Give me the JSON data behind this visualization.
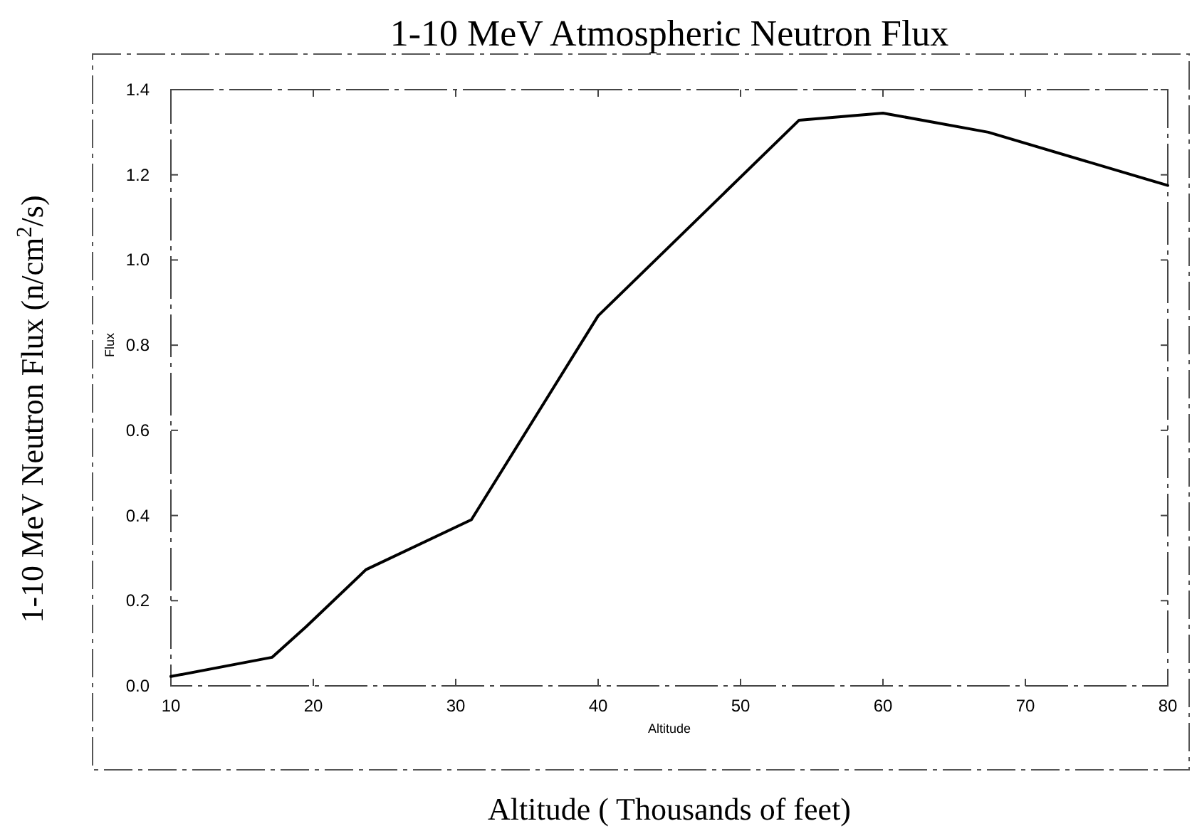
{
  "chart_data": {
    "type": "line",
    "title": "1-10 MeV Atmospheric Neutron Flux",
    "xlabel": "Altitude ( Thousands of feet)",
    "ylabel": "1-10 MeV Neutron Flux (n/cm$^{2}$/s)",
    "annotations": [
      "Flux",
      "Altitude"
    ],
    "x": [
      10,
      17.1,
      19.5,
      23.7,
      31.1,
      40,
      54.1,
      60,
      67.4,
      80
    ],
    "series": [
      {
        "color": "#000000",
        "values": [
          0.022,
          0.067,
          0.139,
          0.273,
          0.39,
          0.869,
          1.328,
          1.345,
          1.3,
          1.175
        ]
      }
    ],
    "xlim": [
      10,
      80
    ],
    "xticks": [
      10,
      20,
      30,
      40,
      50,
      60,
      70,
      80
    ],
    "ylim": [
      0,
      1.4
    ],
    "yticks": [
      {
        "value": 0,
        "label": "0.0"
      },
      0.2,
      0.4,
      0.6,
      0.8,
      {
        "value": 1,
        "label": "1.0"
      },
      1.2,
      1.4
    ],
    "grid": false,
    "marker": "none",
    "line_style": "solid"
  }
}
